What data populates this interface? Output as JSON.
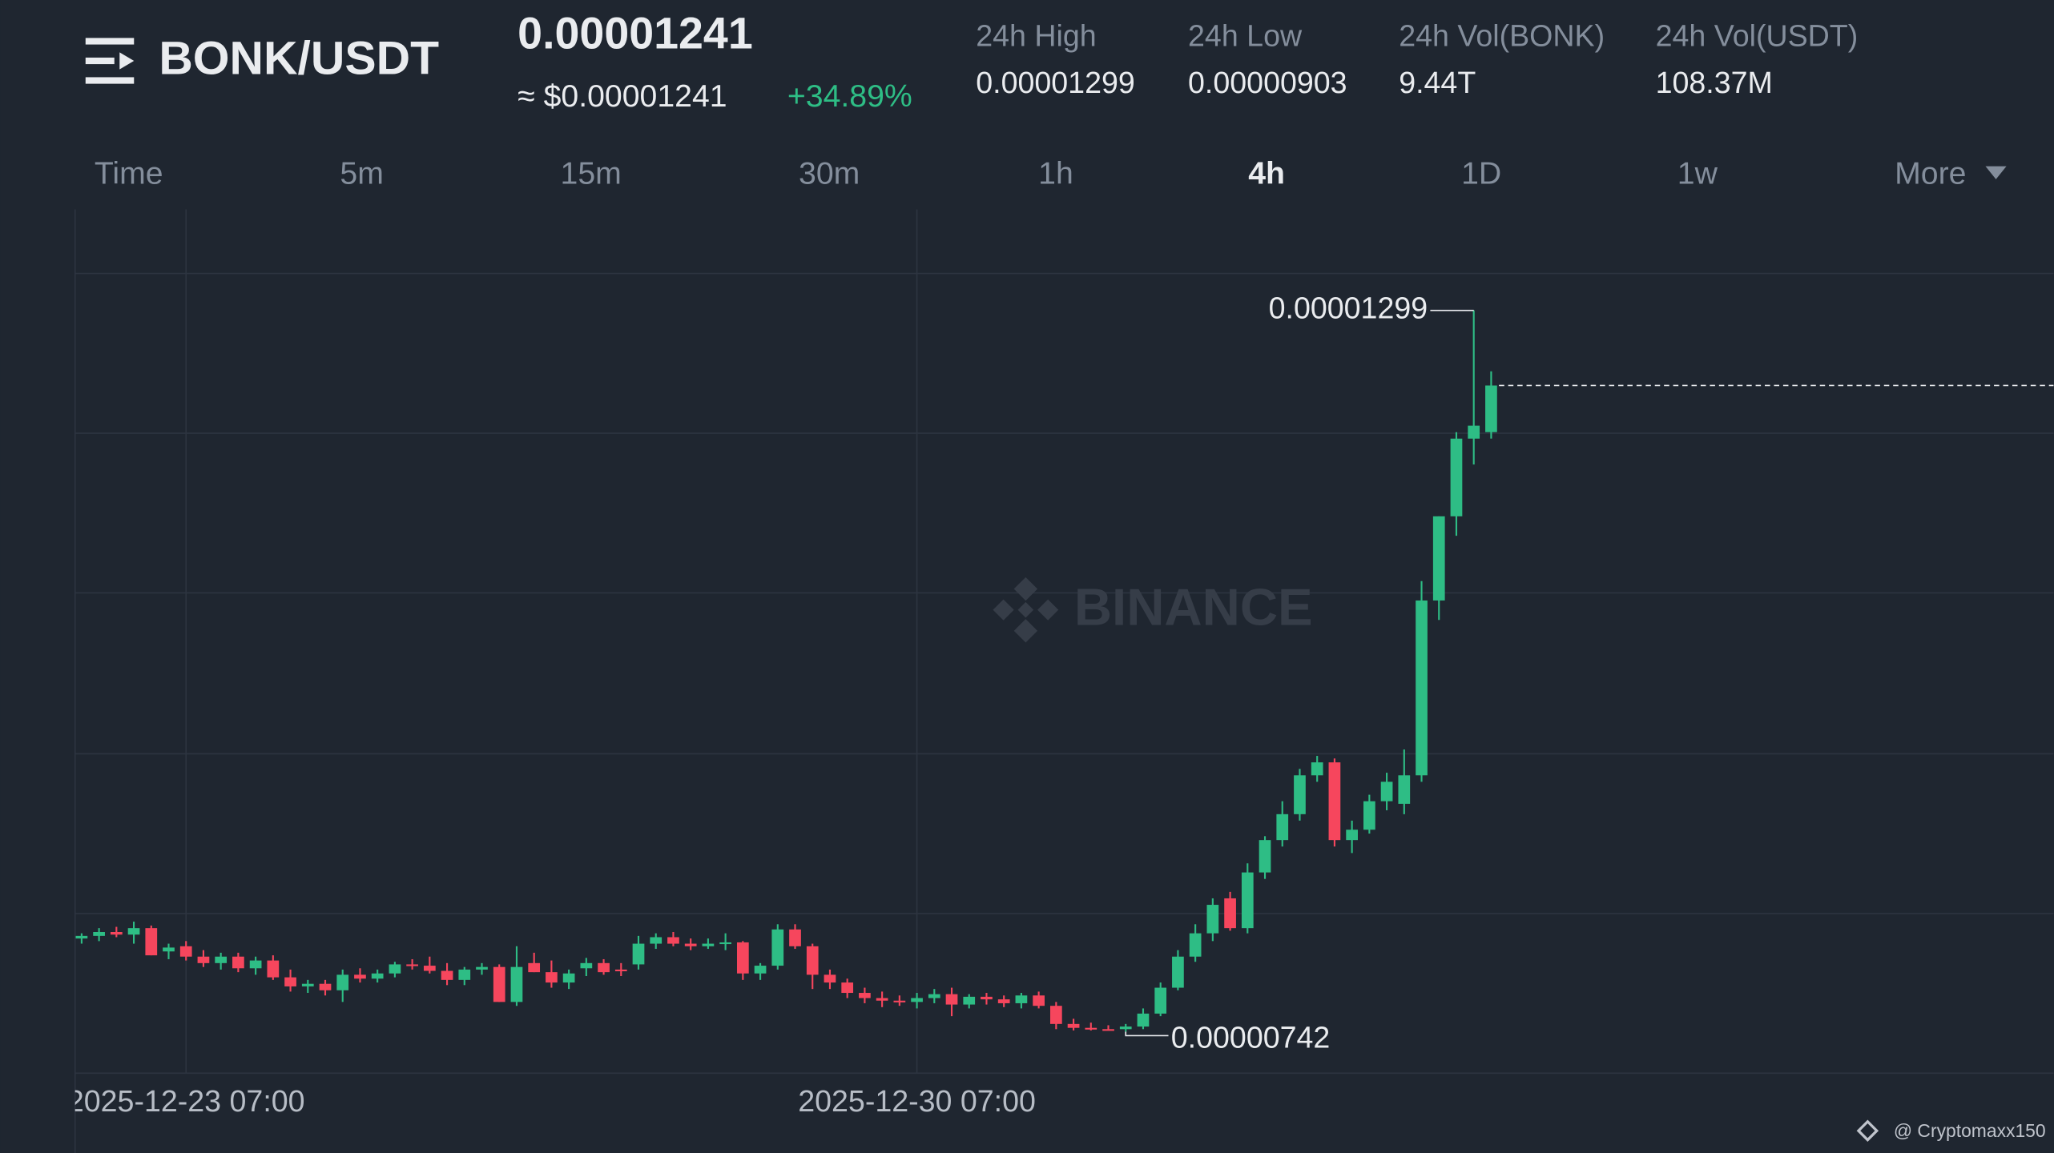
{
  "header": {
    "pair": "BONK/USDT",
    "price": "0.00001241",
    "usd_price": "≈ $0.00001241",
    "change": "+34.89%",
    "stats": [
      {
        "label": "24h High",
        "value": "0.00001299"
      },
      {
        "label": "24h Low",
        "value": "0.00000903"
      },
      {
        "label": "24h Vol(BONK)",
        "value": "9.44T"
      },
      {
        "label": "24h Vol(USDT)",
        "value": "108.37M"
      }
    ]
  },
  "tabs": [
    "Time",
    "5m",
    "15m",
    "30m",
    "1h",
    "4h",
    "1D",
    "1w",
    "More"
  ],
  "chart_data": {
    "type": "candlestick",
    "watermark": "BINANCE",
    "up_color": "#2ebd85",
    "down_color": "#f6465d",
    "ylim": [
      7.1e-06,
      1.377e-05
    ],
    "categories": [
      null,
      null,
      null,
      null,
      null,
      null,
      "2025-12-23 07:00",
      null,
      null,
      null,
      null,
      null,
      null,
      null,
      null,
      null,
      null,
      null,
      null,
      null,
      null,
      null,
      null,
      null,
      null,
      null,
      null,
      null,
      null,
      null,
      null,
      null,
      null,
      null,
      null,
      null,
      null,
      null,
      null,
      null,
      null,
      null,
      null,
      null,
      null,
      null,
      null,
      null,
      "2025-12-30 07:00",
      null,
      null,
      null,
      null,
      null,
      null,
      null,
      null,
      null,
      null,
      null,
      null,
      null,
      null,
      null,
      null,
      null,
      null,
      null,
      null,
      null,
      null,
      null,
      null,
      null,
      null,
      null,
      null,
      null,
      null,
      null,
      null,
      null
    ],
    "open": [
      8.14e-06,
      8.16e-06,
      8.19e-06,
      8.17e-06,
      8.22e-06,
      8.04e-06,
      8.08e-06,
      8e-06,
      7.95e-06,
      8e-06,
      7.91e-06,
      7.97e-06,
      7.84e-06,
      7.77e-06,
      7.79e-06,
      7.74e-06,
      7.86e-06,
      7.83e-06,
      7.87e-06,
      7.94e-06,
      7.93e-06,
      7.89e-06,
      7.82e-06,
      7.9e-06,
      7.92e-06,
      7.65e-06,
      7.95e-06,
      7.88e-06,
      7.8e-06,
      7.91e-06,
      7.95e-06,
      7.9e-06,
      7.94e-06,
      8.1e-06,
      8.15e-06,
      8.1e-06,
      8.08e-06,
      8.1e-06,
      8.11e-06,
      7.87e-06,
      7.93e-06,
      8.21e-06,
      8.08e-06,
      7.86e-06,
      7.8e-06,
      7.72e-06,
      7.68e-06,
      7.66e-06,
      7.65e-06,
      7.68e-06,
      7.71e-06,
      7.63e-06,
      7.69e-06,
      7.67e-06,
      7.64e-06,
      7.7e-06,
      7.62e-06,
      7.48e-06,
      7.45e-06,
      7.44e-06,
      7.44e-06,
      7.46e-06,
      7.56e-06,
      7.76e-06,
      8e-06,
      8.18e-06,
      8.45e-06,
      8.22e-06,
      8.65e-06,
      8.9e-06,
      9.1e-06,
      9.4e-06,
      9.5e-06,
      8.9e-06,
      8.98e-06,
      9.2e-06,
      9.18e-06,
      9.4e-06,
      1.075e-05,
      1.14e-05,
      1.2e-05,
      1.205e-05
    ],
    "high": [
      8.18e-06,
      8.22e-06,
      8.23e-06,
      8.27e-06,
      8.24e-06,
      8.1e-06,
      8.12e-06,
      8.05e-06,
      8.03e-06,
      8.03e-06,
      8e-06,
      8.01e-06,
      7.9e-06,
      7.82e-06,
      7.82e-06,
      7.9e-06,
      7.91e-06,
      7.9e-06,
      7.96e-06,
      7.98e-06,
      8e-06,
      7.95e-06,
      7.92e-06,
      7.95e-06,
      7.94e-06,
      8.08e-06,
      8.03e-06,
      7.97e-06,
      7.9e-06,
      7.99e-06,
      7.98e-06,
      7.95e-06,
      8.16e-06,
      8.18e-06,
      8.19e-06,
      8.14e-06,
      8.14e-06,
      8.18e-06,
      8.12e-06,
      7.95e-06,
      8.25e-06,
      8.25e-06,
      8.1e-06,
      7.9e-06,
      7.83e-06,
      7.76e-06,
      7.73e-06,
      7.7e-06,
      7.72e-06,
      7.75e-06,
      7.76e-06,
      7.71e-06,
      7.72e-06,
      7.7e-06,
      7.72e-06,
      7.73e-06,
      7.65e-06,
      7.52e-06,
      7.49e-06,
      7.47e-06,
      7.48e-06,
      7.6e-06,
      7.8e-06,
      8.05e-06,
      8.25e-06,
      8.45e-06,
      8.5e-06,
      8.72e-06,
      8.93e-06,
      9.2e-06,
      9.45e-06,
      9.55e-06,
      9.53e-06,
      9.05e-06,
      9.25e-06,
      9.42e-06,
      9.6e-06,
      1.09e-05,
      1.14e-05,
      1.205e-05,
      1.299e-05,
      1.252e-05
    ],
    "low": [
      8.1e-06,
      8.12e-06,
      8.15e-06,
      8.1e-06,
      8.01e-06,
      7.98e-06,
      7.97e-06,
      7.92e-06,
      7.9e-06,
      7.88e-06,
      7.86e-06,
      7.82e-06,
      7.73e-06,
      7.72e-06,
      7.7e-06,
      7.65e-06,
      7.8e-06,
      7.8e-06,
      7.84e-06,
      7.9e-06,
      7.87e-06,
      7.78e-06,
      7.78e-06,
      7.86e-06,
      7.65e-06,
      7.62e-06,
      7.88e-06,
      7.76e-06,
      7.75e-06,
      7.85e-06,
      7.86e-06,
      7.85e-06,
      7.9e-06,
      8.06e-06,
      8.08e-06,
      8.05e-06,
      8.06e-06,
      8.05e-06,
      7.82e-06,
      7.82e-06,
      7.9e-06,
      8.06e-06,
      7.75e-06,
      7.75e-06,
      7.68e-06,
      7.64e-06,
      7.61e-06,
      7.62e-06,
      7.6e-06,
      7.64e-06,
      7.54e-06,
      7.6e-06,
      7.63e-06,
      7.61e-06,
      7.6e-06,
      7.6e-06,
      7.44e-06,
      7.43e-06,
      7.43e-06,
      7.43e-06,
      7.42e-06,
      7.44e-06,
      7.54e-06,
      7.74e-06,
      7.96e-06,
      8.12e-06,
      8.2e-06,
      8.18e-06,
      8.6e-06,
      8.85e-06,
      9.05e-06,
      9.35e-06,
      8.85e-06,
      8.8e-06,
      8.95e-06,
      9.13e-06,
      9.1e-06,
      9.35e-06,
      1.06e-05,
      1.125e-05,
      1.18e-05,
      1.2e-05
    ],
    "close": [
      8.16e-06,
      8.19e-06,
      8.17e-06,
      8.22e-06,
      8.01e-06,
      8.07e-06,
      8e-06,
      7.95e-06,
      8e-06,
      7.91e-06,
      7.97e-06,
      7.84e-06,
      7.77e-06,
      7.79e-06,
      7.74e-06,
      7.86e-06,
      7.83e-06,
      7.87e-06,
      7.94e-06,
      7.93e-06,
      7.89e-06,
      7.82e-06,
      7.9e-06,
      7.92e-06,
      7.65e-06,
      7.92e-06,
      7.88e-06,
      7.8e-06,
      7.87e-06,
      7.95e-06,
      7.88e-06,
      7.89e-06,
      8.1e-06,
      8.15e-06,
      8.1e-06,
      8.08e-06,
      8.1e-06,
      8.11e-06,
      7.87e-06,
      7.93e-06,
      8.21e-06,
      8.08e-06,
      7.86e-06,
      7.8e-06,
      7.72e-06,
      7.68e-06,
      7.66e-06,
      7.65e-06,
      7.68e-06,
      7.71e-06,
      7.63e-06,
      7.69e-06,
      7.67e-06,
      7.64e-06,
      7.7e-06,
      7.62e-06,
      7.48e-06,
      7.45e-06,
      7.44e-06,
      7.43e-06,
      7.46e-06,
      7.56e-06,
      7.76e-06,
      8e-06,
      8.18e-06,
      8.4e-06,
      8.22e-06,
      8.65e-06,
      8.9e-06,
      9.1e-06,
      9.4e-06,
      9.5e-06,
      8.9e-06,
      8.98e-06,
      9.2e-06,
      9.35e-06,
      9.4e-06,
      1.075e-05,
      1.14e-05,
      1.2e-05,
      1.21e-05,
      1.241e-05
    ]
  },
  "footer": {
    "credit": "@ Cryptomaxx150"
  }
}
